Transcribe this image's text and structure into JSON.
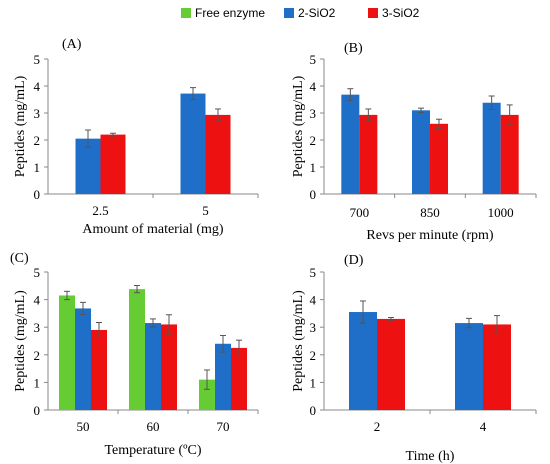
{
  "legend": [
    {
      "name": "Free enzyme",
      "color": "#66cc33"
    },
    {
      "name": "2-SiO2",
      "color": "#1f6fc9"
    },
    {
      "name": "3-SiO2",
      "color": "#ee1111"
    }
  ],
  "chart_data": [
    {
      "type": "bar",
      "panel_label": "(A)",
      "xlabel": "Amount  of material (mg)",
      "ylabel": "Peptides (mg/mL)",
      "ylim": [
        0,
        5
      ],
      "yticks": [
        0,
        1,
        2,
        3,
        4,
        5
      ],
      "categories": [
        "2.5",
        "5"
      ],
      "series": [
        {
          "name": "2-SiO2",
          "values": [
            2.05,
            3.72
          ],
          "errors": [
            0.32,
            0.22
          ]
        },
        {
          "name": "3-SiO2",
          "values": [
            2.2,
            2.93
          ],
          "errors": [
            0.05,
            0.22
          ]
        }
      ]
    },
    {
      "type": "bar",
      "panel_label": "(B)",
      "xlabel": "Revs per minute  (rpm)",
      "ylabel": "Peptides (mg/mL)",
      "ylim": [
        0,
        5
      ],
      "yticks": [
        0,
        1,
        2,
        3,
        4,
        5
      ],
      "categories": [
        "700",
        "850",
        "1000"
      ],
      "series": [
        {
          "name": "2-SiO2",
          "values": [
            3.68,
            3.1,
            3.38
          ],
          "errors": [
            0.22,
            0.08,
            0.25
          ]
        },
        {
          "name": "3-SiO2",
          "values": [
            2.93,
            2.6,
            2.93
          ],
          "errors": [
            0.22,
            0.17,
            0.37
          ]
        }
      ]
    },
    {
      "type": "bar",
      "panel_label": "(C)",
      "xlabel": "Temperature (ºC)",
      "ylabel": "Peptides (mg/mL)",
      "ylim": [
        0,
        5
      ],
      "yticks": [
        0,
        1,
        2,
        3,
        4,
        5
      ],
      "categories": [
        "50",
        "60",
        "70"
      ],
      "series": [
        {
          "name": "Free enzyme",
          "values": [
            4.15,
            4.38,
            1.1
          ],
          "errors": [
            0.15,
            0.13,
            0.35
          ]
        },
        {
          "name": "2-SiO2",
          "values": [
            3.68,
            3.15,
            2.4
          ],
          "errors": [
            0.22,
            0.15,
            0.3
          ]
        },
        {
          "name": "3-SiO2",
          "values": [
            2.9,
            3.1,
            2.25
          ],
          "errors": [
            0.27,
            0.35,
            0.28
          ]
        }
      ]
    },
    {
      "type": "bar",
      "panel_label": "(D)",
      "xlabel": "Time (h)",
      "ylabel": "Peptides (mg/mL)",
      "ylim": [
        0,
        5
      ],
      "yticks": [
        0,
        1,
        2,
        3,
        4,
        5
      ],
      "categories": [
        "2",
        "4"
      ],
      "series": [
        {
          "name": "2-SiO2",
          "values": [
            3.55,
            3.15
          ],
          "errors": [
            0.4,
            0.17
          ]
        },
        {
          "name": "3-SiO2",
          "values": [
            3.3,
            3.1
          ],
          "errors": [
            0.05,
            0.32
          ]
        }
      ]
    }
  ]
}
